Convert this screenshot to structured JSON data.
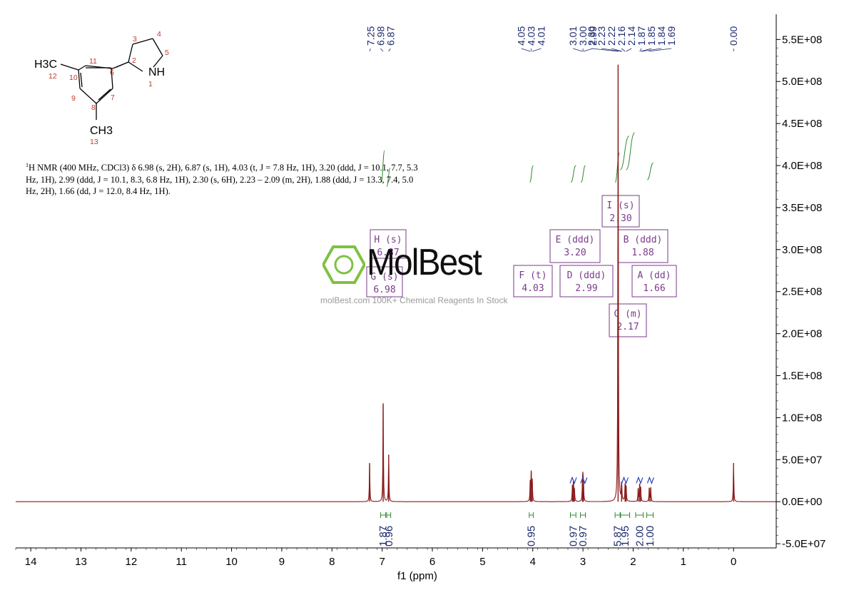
{
  "chart_data": {
    "type": "line",
    "xlabel": "f1 (ppm)",
    "xlim": [
      14.3,
      -0.85
    ],
    "ylim": [
      -55000000.0,
      580000000.0
    ],
    "x_ticks": [
      14,
      13,
      12,
      11,
      10,
      9,
      8,
      7,
      6,
      5,
      4,
      3,
      2,
      1,
      0
    ],
    "y_ticks": [
      {
        "v": 550000000.0,
        "label": "5.5E+08"
      },
      {
        "v": 500000000.0,
        "label": "5.0E+08"
      },
      {
        "v": 450000000.0,
        "label": "4.5E+08"
      },
      {
        "v": 400000000.0,
        "label": "4.0E+08"
      },
      {
        "v": 350000000.0,
        "label": "3.5E+08"
      },
      {
        "v": 300000000.0,
        "label": "3.0E+08"
      },
      {
        "v": 250000000.0,
        "label": "2.5E+08"
      },
      {
        "v": 200000000.0,
        "label": "2.0E+08"
      },
      {
        "v": 150000000.0,
        "label": "1.5E+08"
      },
      {
        "v": 100000000.0,
        "label": "1.0E+08"
      },
      {
        "v": 50000000.0,
        "label": "5.0E+07"
      },
      {
        "v": 0,
        "label": "0.0E+00"
      },
      {
        "v": -50000000.0,
        "label": "-5.0E+07"
      }
    ],
    "peaks": [
      {
        "ppm": 7.25,
        "intensity": 46000000.0
      },
      {
        "ppm": 6.98,
        "intensity": 117000000.0
      },
      {
        "ppm": 6.87,
        "intensity": 56000000.0
      },
      {
        "ppm": 4.05,
        "intensity": 26000000.0
      },
      {
        "ppm": 4.03,
        "intensity": 36000000.0
      },
      {
        "ppm": 4.01,
        "intensity": 24000000.0
      },
      {
        "ppm": 3.21,
        "intensity": 20000000.0
      },
      {
        "ppm": 3.19,
        "intensity": 25000000.0
      },
      {
        "ppm": 3.17,
        "intensity": 15000000.0
      },
      {
        "ppm": 3.01,
        "intensity": 21000000.0
      },
      {
        "ppm": 3.0,
        "intensity": 26000000.0
      },
      {
        "ppm": 2.99,
        "intensity": 19000000.0
      },
      {
        "ppm": 2.3,
        "intensity": 520000000.0
      },
      {
        "ppm": 2.23,
        "intensity": 24000000.0
      },
      {
        "ppm": 2.16,
        "intensity": 22000000.0
      },
      {
        "ppm": 2.14,
        "intensity": 18000000.0
      },
      {
        "ppm": 1.9,
        "intensity": 15000000.0
      },
      {
        "ppm": 1.87,
        "intensity": 21000000.0
      },
      {
        "ppm": 1.85,
        "intensity": 16000000.0
      },
      {
        "ppm": 1.68,
        "intensity": 16000000.0
      },
      {
        "ppm": 1.65,
        "intensity": 17000000.0
      },
      {
        "ppm": 0.0,
        "intensity": 46000000.0
      }
    ],
    "peak_label_groups": [
      {
        "labels": [
          "7.25",
          "6.98",
          "6.87"
        ],
        "ppm": [
          7.25,
          6.98,
          6.87
        ]
      },
      {
        "labels": [
          "4.05",
          "4.03",
          "4.01"
        ],
        "ppm": [
          4.05,
          4.03,
          4.01
        ]
      },
      {
        "labels": [
          "3.01",
          "3.00",
          "2.99"
        ],
        "ppm": [
          3.01,
          3.0,
          2.99
        ]
      },
      {
        "labels": [
          "2.30",
          "2.23",
          "2.22",
          "2.16",
          "2.14",
          "1.87",
          "1.85",
          "1.84",
          "1.69"
        ],
        "ppm": [
          2.3,
          2.23,
          2.22,
          2.16,
          2.14,
          1.87,
          1.85,
          1.84,
          1.69
        ]
      },
      {
        "labels": [
          "0.00"
        ],
        "ppm": [
          0.0
        ]
      }
    ],
    "integrals": [
      {
        "label": "1.87",
        "from": 7.03,
        "to": 6.93
      },
      {
        "label": "0.96",
        "from": 6.91,
        "to": 6.83
      },
      {
        "label": "0.95",
        "from": 4.07,
        "to": 3.99
      },
      {
        "label": "0.97",
        "from": 3.25,
        "to": 3.14
      },
      {
        "label": "0.97",
        "from": 3.05,
        "to": 2.95
      },
      {
        "label": "5.87",
        "from": 2.36,
        "to": 2.26
      },
      {
        "label": "1.95",
        "from": 2.25,
        "to": 2.07
      },
      {
        "label": "2.00",
        "from": 1.95,
        "to": 1.8
      },
      {
        "label": "1.00",
        "from": 1.73,
        "to": 1.6
      }
    ],
    "integral_curves": [
      {
        "from": 7.02,
        "to": 6.95,
        "y0": 380000000.0,
        "rise": 38000000.0
      },
      {
        "from": 6.91,
        "to": 6.84,
        "y0": 375000000.0,
        "rise": 22000000.0
      },
      {
        "from": 4.06,
        "to": 3.99,
        "y0": 380000000.0,
        "rise": 20000000.0
      },
      {
        "from": 3.24,
        "to": 3.14,
        "y0": 380000000.0,
        "rise": 20000000.0
      },
      {
        "from": 3.04,
        "to": 2.95,
        "y0": 380000000.0,
        "rise": 20000000.0
      },
      {
        "from": 2.36,
        "to": 2.27,
        "y0": 380000000.0,
        "rise": 35000000.0
      },
      {
        "from": 2.26,
        "to": 2.08,
        "y0": 395000000.0,
        "rise": 40000000.0
      },
      {
        "from": 2.14,
        "to": 1.97,
        "y0": 395000000.0,
        "rise": 44000000.0
      },
      {
        "from": 1.72,
        "to": 1.6,
        "y0": 383000000.0,
        "rise": 20000000.0
      }
    ],
    "multiplet_boxes": [
      {
        "name": "H (s)",
        "value": "6.87",
        "ppm": 6.87
      },
      {
        "name": "G (s)",
        "value": "6.98",
        "ppm": 6.98
      },
      {
        "name": "F (t)",
        "value": "4.03",
        "ppm": 4.03
      },
      {
        "name": "E (ddd)",
        "value": "3.20",
        "ppm": 3.2
      },
      {
        "name": "D (ddd)",
        "value": "2.99",
        "ppm": 2.99
      },
      {
        "name": "I (s)",
        "value": "2.30",
        "ppm": 2.3
      },
      {
        "name": "C (m)",
        "value": "2.17",
        "ppm": 2.17
      },
      {
        "name": "B (ddd)",
        "value": "1.88",
        "ppm": 1.88
      },
      {
        "name": "A (dd)",
        "value": "1.66",
        "ppm": 1.66
      }
    ],
    "colors": {
      "spectrum": "#8b1a1a",
      "axis": "#000000",
      "integral": "#2e8b2e",
      "peak_label": "#1c2a6e",
      "multiplet_box": "#7a3b8a",
      "blue_marker": "#2b3fb5"
    }
  },
  "molecule": {
    "atoms": {
      "h3c": "H3C",
      "ch3": "CH3",
      "nh": "NH"
    },
    "numbering": [
      "1",
      "2",
      "3",
      "4",
      "5",
      "6",
      "7",
      "8",
      "9",
      "10",
      "11",
      "12",
      "13"
    ]
  },
  "nmr_description": {
    "prefix": "1",
    "text": "H NMR (400 MHz, CDCl3) δ 6.98 (s, 2H), 6.87 (s, 1H), 4.03 (t, J = 7.8 Hz, 1H), 3.20 (ddd, J = 10.1, 7.7, 5.3 Hz, 1H), 2.99 (ddd, J = 10.1, 8.3, 6.8 Hz, 1H), 2.30 (s, 6H), 2.23 – 2.09 (m, 2H), 1.88 (ddd, J = 13.3, 7.4, 5.0 Hz, 2H), 1.66 (dd, J = 12.0, 8.4 Hz, 1H)."
  },
  "watermark": {
    "brand": "MolBest",
    "subtitle": "molBest.com 100K+ Chemical Reagents In Stock"
  }
}
